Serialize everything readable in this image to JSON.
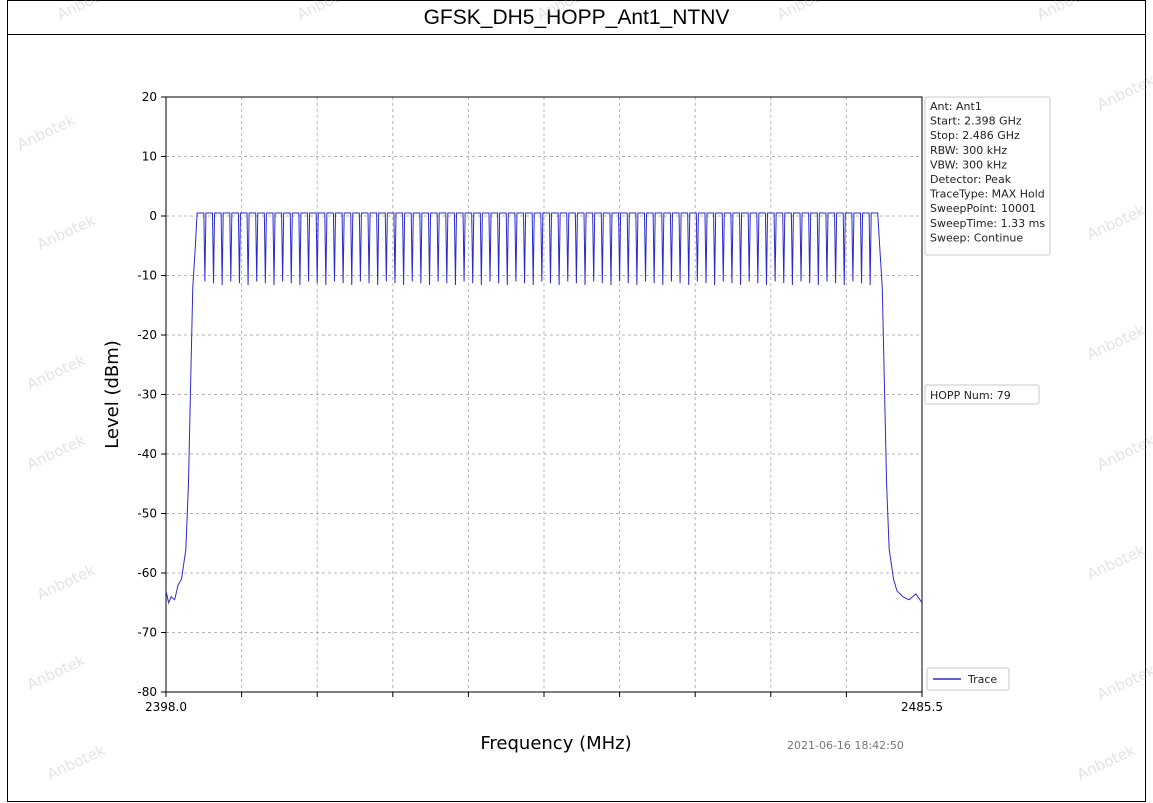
{
  "header": {
    "title": "GFSK_DH5_HOPP_Ant1_NTNV"
  },
  "info_box": {
    "lines": [
      "Ant: Ant1",
      "Start: 2.398 GHz",
      "Stop: 2.486 GHz",
      "RBW: 300 kHz",
      "VBW: 300 kHz",
      "Detector: Peak",
      "TraceType: MAX Hold",
      "SweepPoint: 10001",
      "SweepTime: 1.33 ms",
      "Sweep: Continue"
    ]
  },
  "hopp_label": "HOPP Num: 79",
  "timestamp": "2021-06-16 18:42:50",
  "watermark": "Anbotek",
  "colors": {
    "trace": "#2b2bcc",
    "grid": "#b5b5b5",
    "axis": "#000000"
  },
  "chart_data": {
    "type": "line",
    "title": "GFSK_DH5_HOPP_Ant1_NTNV",
    "xlabel": "Frequency (MHz)",
    "ylabel": "Level (dBm)",
    "xlim": [
      2398.0,
      2485.5
    ],
    "ylim": [
      -80,
      20
    ],
    "x_ticks": [
      "2398.0",
      "2485.5"
    ],
    "y_ticks": [
      "20",
      "10",
      "0",
      "-10",
      "-20",
      "-30",
      "-40",
      "-50",
      "-60",
      "-70",
      "-80"
    ],
    "grid": true,
    "legend": {
      "position": "bottom-right",
      "entries": [
        "Trace"
      ]
    },
    "series": [
      {
        "name": "Trace",
        "hop_count": 79,
        "first_channel_mhz": 2402,
        "channel_spacing_mhz": 1,
        "peak_level_dbm": 0.5,
        "valley_level_dbm": -11,
        "floor_level_dbm": -64,
        "edges": [
          [
            2398.0,
            -63.0
          ],
          [
            2398.3,
            -65.0
          ],
          [
            2398.6,
            -64.0
          ],
          [
            2399.0,
            -64.5
          ],
          [
            2399.4,
            -62.0
          ],
          [
            2399.8,
            -61.0
          ],
          [
            2400.3,
            -56.0
          ],
          [
            2400.6,
            -45.0
          ],
          [
            2400.9,
            -25.0
          ],
          [
            2401.1,
            -12.0
          ],
          [
            2401.4,
            -5.0
          ],
          [
            2401.6,
            0.5
          ],
          [
            2480.4,
            0.5
          ],
          [
            2480.6,
            -5.0
          ],
          [
            2480.9,
            -12.0
          ],
          [
            2481.1,
            -25.0
          ],
          [
            2481.4,
            -45.0
          ],
          [
            2481.7,
            -56.0
          ],
          [
            2482.2,
            -61.0
          ],
          [
            2482.6,
            -63.0
          ],
          [
            2483.3,
            -64.0
          ],
          [
            2484.0,
            -64.5
          ],
          [
            2484.8,
            -63.5
          ],
          [
            2485.5,
            -65.0
          ]
        ]
      }
    ]
  }
}
